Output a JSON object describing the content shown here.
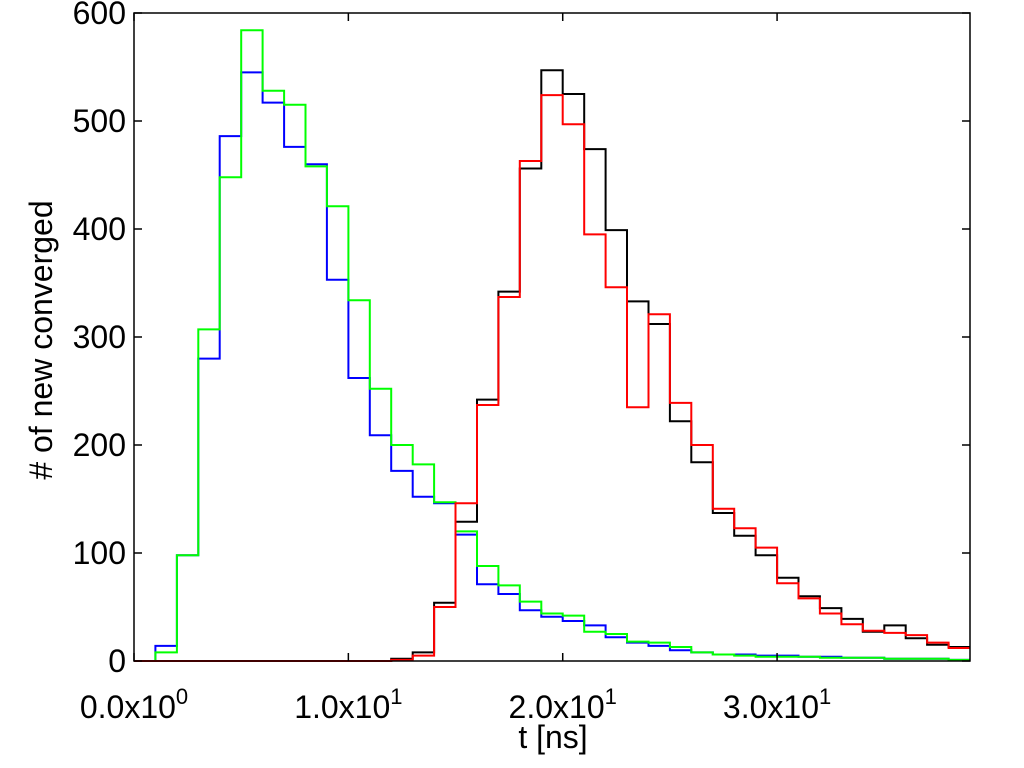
{
  "chart_data": {
    "type": "line",
    "title": "",
    "xlabel": "t [ns]",
    "ylabel": "# of new converged",
    "xlim": [
      0,
      39
    ],
    "ylim": [
      0,
      600
    ],
    "grid": false,
    "legend": "none",
    "bin_width": 1,
    "x_ticks": [
      {
        "value": 0,
        "mantissa": "0.0x10",
        "exp": "0"
      },
      {
        "value": 10,
        "mantissa": "1.0x10",
        "exp": "1"
      },
      {
        "value": 20,
        "mantissa": "2.0x10",
        "exp": "1"
      },
      {
        "value": 30,
        "mantissa": "3.0x10",
        "exp": "1"
      }
    ],
    "y_ticks": [
      "0",
      "100",
      "200",
      "300",
      "400",
      "500",
      "600"
    ],
    "x": [
      0,
      1,
      2,
      3,
      4,
      5,
      6,
      7,
      8,
      9,
      10,
      11,
      12,
      13,
      14,
      15,
      16,
      17,
      18,
      19,
      20,
      21,
      22,
      23,
      24,
      25,
      26,
      27,
      28,
      29,
      30,
      31,
      32,
      33,
      34,
      35,
      36,
      37,
      38
    ],
    "series": [
      {
        "color": "#0000ff",
        "values": [
          0,
          14,
          98,
          280,
          486,
          545,
          517,
          476,
          460,
          353,
          262,
          209,
          176,
          152,
          146,
          117,
          71,
          62,
          47,
          41,
          37,
          33,
          22,
          17,
          14,
          10,
          8,
          6,
          6,
          5,
          5,
          4,
          4,
          3,
          3,
          2,
          2,
          2,
          1
        ]
      },
      {
        "color": "#00ff00",
        "values": [
          0,
          8,
          98,
          307,
          448,
          584,
          528,
          515,
          458,
          421,
          334,
          252,
          200,
          182,
          147,
          120,
          88,
          70,
          55,
          44,
          42,
          27,
          25,
          18,
          17,
          13,
          8,
          6,
          5,
          4,
          4,
          4,
          3,
          3,
          3,
          2,
          2,
          2,
          1
        ]
      },
      {
        "color": "#000000",
        "values": [
          0,
          0,
          0,
          0,
          0,
          0,
          0,
          0,
          0,
          0,
          0,
          0,
          2,
          8,
          54,
          129,
          242,
          342,
          456,
          547,
          525,
          474,
          399,
          333,
          312,
          222,
          184,
          137,
          116,
          98,
          77,
          60,
          49,
          39,
          27,
          33,
          21,
          15,
          13
        ]
      },
      {
        "color": "#ff0000",
        "values": [
          0,
          0,
          0,
          0,
          0,
          0,
          0,
          0,
          0,
          0,
          0,
          0,
          1,
          5,
          50,
          146,
          237,
          337,
          463,
          524,
          497,
          395,
          346,
          235,
          321,
          239,
          200,
          141,
          123,
          105,
          72,
          58,
          44,
          34,
          28,
          26,
          24,
          17,
          12
        ]
      }
    ]
  }
}
